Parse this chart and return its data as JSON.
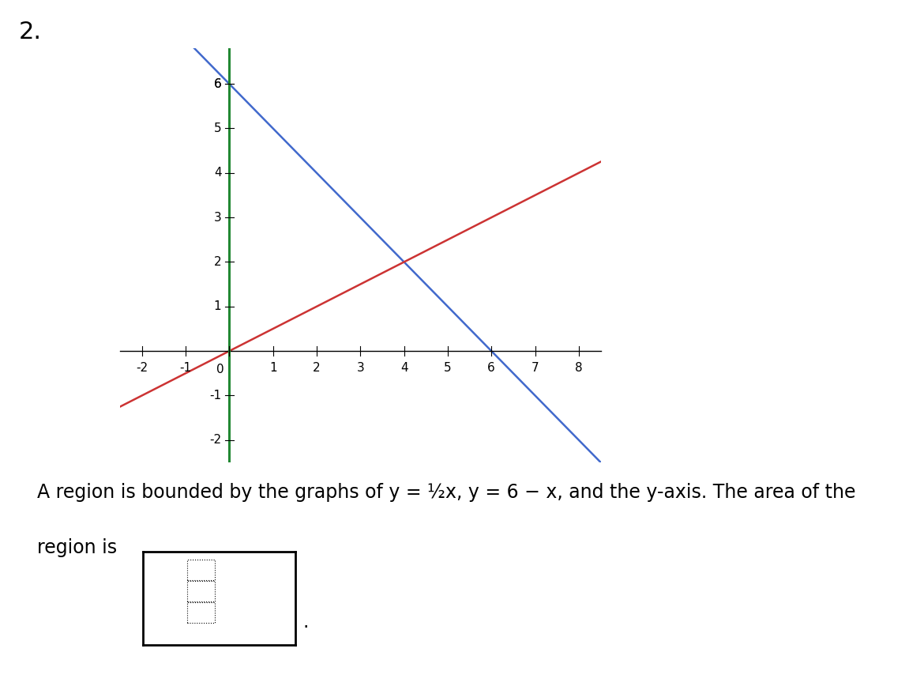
{
  "title_number": "2.",
  "title_fontsize": 22,
  "xlim": [
    -2.5,
    8.5
  ],
  "ylim": [
    -2.5,
    6.8
  ],
  "xticks": [
    -2,
    -1,
    0,
    1,
    2,
    3,
    4,
    5,
    6,
    7,
    8
  ],
  "yticks": [
    -2,
    -1,
    1,
    2,
    3,
    4,
    5,
    6
  ],
  "line1_color": "#4169cc",
  "line2_color": "#cc3333",
  "yaxis_color": "#228833",
  "text_line1": "A region is bounded by the graphs of y = ½x, y = 6 − x, and the y-axis. The area of the",
  "text_line2": "region is",
  "text_fontsize": 17,
  "tick_fontsize": 11,
  "line_linewidth": 1.8,
  "yaxis_linewidth": 2.2,
  "axis_linewidth": 1.0
}
